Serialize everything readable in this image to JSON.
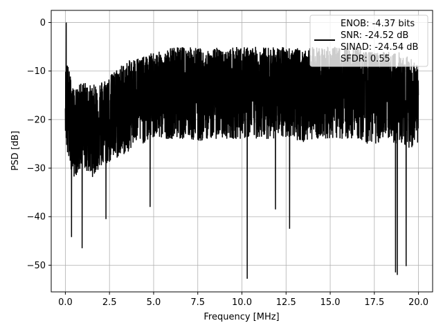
{
  "chart_data": {
    "type": "line",
    "xlabel": "Frequency [MHz]",
    "ylabel": "PSD [dB]",
    "xlim": [
      -0.8,
      20.8
    ],
    "ylim": [
      -55.5,
      2.5
    ],
    "x_ticks": [
      0.0,
      2.5,
      5.0,
      7.5,
      10.0,
      12.5,
      15.0,
      17.5,
      20.0
    ],
    "x_tick_labels": [
      "0.0",
      "2.5",
      "5.0",
      "7.5",
      "10.0",
      "12.5",
      "15.0",
      "17.5",
      "20.0"
    ],
    "y_ticks": [
      0,
      -10,
      -20,
      -30,
      -40,
      -50
    ],
    "y_tick_labels": [
      "0",
      "−10",
      "−20",
      "−30",
      "−40",
      "−50"
    ],
    "grid": true,
    "legend_placement": "top-right",
    "legend_lines": [
      "ENOB: -4.37 bits",
      "SNR: -24.52 dB",
      "SINAD: -24.54 dB",
      "SFDR: 0.55"
    ],
    "series": [
      {
        "color": "#000000",
        "x_range": [
          0.0,
          20.0
        ],
        "peak": {
          "x": 0.05,
          "y": 0
        },
        "envelope": {
          "x": [
            0.0,
            0.1,
            0.5,
            1.0,
            1.5,
            2.0,
            2.5,
            3.0,
            3.5,
            4.0,
            4.5,
            5.0,
            5.5,
            6.0,
            6.5,
            7.0,
            7.5,
            8.0,
            8.5,
            9.0,
            9.5,
            10.0,
            10.5,
            11.0,
            11.5,
            12.0,
            12.5,
            13.0,
            13.5,
            14.0,
            14.5,
            15.0,
            15.5,
            16.0,
            16.5,
            17.0,
            17.5,
            18.0,
            18.5,
            19.0,
            19.5,
            20.0
          ],
          "upper": [
            -10,
            -8,
            -14,
            -12,
            -13,
            -12,
            -11,
            -9,
            -8,
            -7,
            -7,
            -6,
            -6,
            -5,
            -5,
            -5,
            -5,
            -6,
            -5,
            -6,
            -5,
            -5,
            -5,
            -5,
            -5,
            -5,
            -5,
            -5,
            -6,
            -5,
            -5,
            -5,
            -5,
            -5,
            -5,
            -6,
            -6,
            -6,
            -6,
            -6,
            -7,
            -9
          ],
          "median": [
            -15,
            -16,
            -22,
            -20,
            -21,
            -20,
            -19,
            -18,
            -17,
            -15,
            -15,
            -14,
            -14,
            -13,
            -13,
            -13,
            -14,
            -14,
            -13,
            -13,
            -13,
            -13,
            -13,
            -13,
            -13,
            -13,
            -13,
            -13,
            -13,
            -13,
            -13,
            -13,
            -13,
            -14,
            -13,
            -14,
            -14,
            -14,
            -15,
            -15,
            -15,
            -16
          ],
          "lower": [
            -22,
            -28,
            -32,
            -30,
            -32,
            -30,
            -29,
            -28,
            -27,
            -25,
            -25,
            -24,
            -24,
            -24,
            -24,
            -24,
            -25,
            -24,
            -24,
            -24,
            -24,
            -24,
            -24,
            -24,
            -24,
            -24,
            -24,
            -24,
            -25,
            -24,
            -24,
            -24,
            -24,
            -24,
            -24,
            -25,
            -25,
            -25,
            -25,
            -25,
            -26,
            -25
          ]
        },
        "dips": [
          {
            "x": 0.35,
            "y": -44.2
          },
          {
            "x": 0.95,
            "y": -46.5
          },
          {
            "x": 2.3,
            "y": -40.5
          },
          {
            "x": 4.8,
            "y": -38.0
          },
          {
            "x": 10.3,
            "y": -52.8
          },
          {
            "x": 11.9,
            "y": -38.5
          },
          {
            "x": 12.7,
            "y": -42.5
          },
          {
            "x": 18.7,
            "y": -51.5
          },
          {
            "x": 18.8,
            "y": -52.0
          },
          {
            "x": 19.3,
            "y": -50.2
          }
        ]
      }
    ]
  }
}
